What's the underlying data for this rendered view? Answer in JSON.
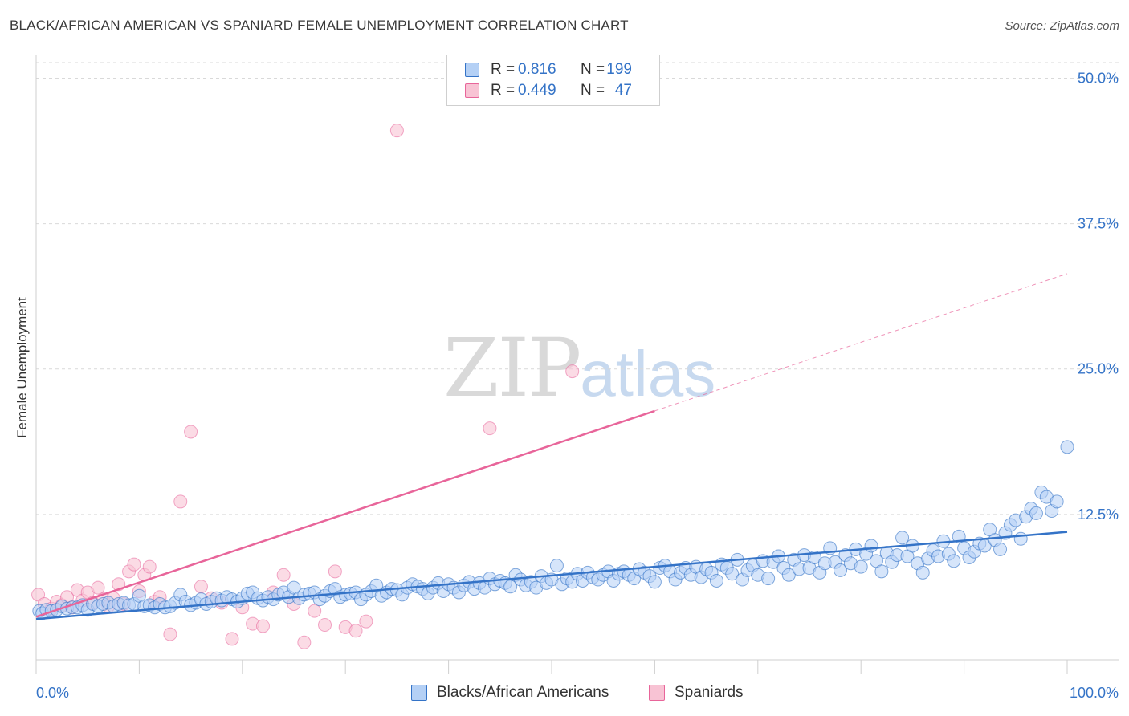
{
  "title": "BLACK/AFRICAN AMERICAN VS SPANIARD FEMALE UNEMPLOYMENT CORRELATION CHART",
  "source": "Source: ZipAtlas.com",
  "watermark": {
    "zip": "ZIP",
    "atlas": "atlas"
  },
  "legend": {
    "blue": {
      "r_label": "R =",
      "r_value": "0.816",
      "n_label": "N =",
      "n_value": "199"
    },
    "pink": {
      "r_label": "R =",
      "r_value": "0.449",
      "n_label": "N =",
      "n_value": "47"
    }
  },
  "bottom_legend": {
    "blue": "Blacks/African Americans",
    "pink": "Spaniards"
  },
  "colors": {
    "blue": "#3473c7",
    "blue_fill": "#b4d0f5",
    "pink": "#e8659a",
    "pink_fill": "#f8c3d4",
    "grid": "#d9d9d9"
  },
  "chart_data": {
    "type": "scatter",
    "title": "BLACK/AFRICAN AMERICAN VS SPANIARD FEMALE UNEMPLOYMENT CORRELATION CHART",
    "xlabel": "",
    "ylabel": "Female Unemployment",
    "xlim": [
      0,
      100
    ],
    "ylim": [
      0,
      53
    ],
    "x_tick_labels": [
      "0.0%",
      "100.0%"
    ],
    "y_ticks": [
      12.5,
      25.0,
      37.5,
      50.0
    ],
    "y_tick_labels": [
      "12.5%",
      "25.0%",
      "37.5%",
      "50.0%"
    ],
    "grid": true,
    "legend_position": "top-center",
    "series": [
      {
        "name": "Blacks/African Americans",
        "color": "#3473c7",
        "trend": {
          "x": [
            0,
            100
          ],
          "y": [
            3.5,
            11.0
          ]
        },
        "points": [
          [
            0.3,
            4.2
          ],
          [
            0.6,
            4.0
          ],
          [
            1.0,
            4.3
          ],
          [
            1.5,
            4.2
          ],
          [
            2.0,
            4.3
          ],
          [
            2.5,
            4.6
          ],
          [
            3.0,
            4.4
          ],
          [
            3.5,
            4.5
          ],
          [
            4.0,
            4.5
          ],
          [
            4.5,
            4.7
          ],
          [
            5.0,
            4.3
          ],
          [
            5.5,
            4.8
          ],
          [
            6.0,
            4.6
          ],
          [
            6.5,
            4.8
          ],
          [
            7.0,
            4.9
          ],
          [
            7.5,
            4.6
          ],
          [
            8.0,
            4.8
          ],
          [
            8.5,
            4.9
          ],
          [
            9.0,
            4.7
          ],
          [
            9.5,
            4.8
          ],
          [
            10.0,
            5.5
          ],
          [
            10.5,
            4.6
          ],
          [
            11.0,
            4.7
          ],
          [
            11.5,
            4.5
          ],
          [
            12.0,
            4.8
          ],
          [
            12.5,
            4.5
          ],
          [
            13.0,
            4.6
          ],
          [
            13.5,
            4.9
          ],
          [
            14.0,
            5.6
          ],
          [
            14.5,
            5.0
          ],
          [
            15.0,
            4.7
          ],
          [
            15.5,
            4.9
          ],
          [
            16.0,
            5.2
          ],
          [
            16.5,
            4.8
          ],
          [
            17.0,
            5.0
          ],
          [
            17.5,
            5.3
          ],
          [
            18.0,
            5.1
          ],
          [
            18.5,
            5.4
          ],
          [
            19.0,
            5.2
          ],
          [
            19.5,
            5.0
          ],
          [
            20.0,
            5.3
          ],
          [
            20.5,
            5.7
          ],
          [
            21.0,
            5.8
          ],
          [
            21.5,
            5.3
          ],
          [
            22.0,
            5.1
          ],
          [
            22.5,
            5.4
          ],
          [
            23.0,
            5.2
          ],
          [
            23.5,
            5.6
          ],
          [
            24.0,
            5.8
          ],
          [
            24.5,
            5.4
          ],
          [
            25.0,
            6.2
          ],
          [
            25.5,
            5.3
          ],
          [
            26.0,
            5.6
          ],
          [
            26.5,
            5.7
          ],
          [
            27.0,
            5.8
          ],
          [
            27.5,
            5.2
          ],
          [
            28.0,
            5.5
          ],
          [
            28.5,
            5.9
          ],
          [
            29.0,
            6.1
          ],
          [
            29.5,
            5.4
          ],
          [
            30.0,
            5.6
          ],
          [
            30.5,
            5.7
          ],
          [
            31.0,
            5.8
          ],
          [
            31.5,
            5.2
          ],
          [
            32.0,
            5.6
          ],
          [
            32.5,
            5.9
          ],
          [
            33.0,
            6.4
          ],
          [
            33.5,
            5.5
          ],
          [
            34.0,
            5.8
          ],
          [
            34.5,
            6.1
          ],
          [
            35.0,
            6.0
          ],
          [
            35.5,
            5.6
          ],
          [
            36.0,
            6.2
          ],
          [
            36.5,
            6.5
          ],
          [
            37.0,
            6.3
          ],
          [
            37.5,
            6.1
          ],
          [
            38.0,
            5.7
          ],
          [
            38.5,
            6.2
          ],
          [
            39.0,
            6.6
          ],
          [
            39.5,
            5.9
          ],
          [
            40.0,
            6.5
          ],
          [
            40.5,
            6.2
          ],
          [
            41.0,
            5.8
          ],
          [
            41.5,
            6.4
          ],
          [
            42.0,
            6.7
          ],
          [
            42.5,
            6.1
          ],
          [
            43.0,
            6.6
          ],
          [
            43.5,
            6.2
          ],
          [
            44.0,
            7.0
          ],
          [
            44.5,
            6.5
          ],
          [
            45.0,
            6.8
          ],
          [
            45.5,
            6.6
          ],
          [
            46.0,
            6.3
          ],
          [
            46.5,
            7.3
          ],
          [
            47.0,
            6.9
          ],
          [
            47.5,
            6.4
          ],
          [
            48.0,
            6.7
          ],
          [
            48.5,
            6.2
          ],
          [
            49.0,
            7.2
          ],
          [
            49.5,
            6.6
          ],
          [
            50.0,
            6.9
          ],
          [
            50.5,
            8.1
          ],
          [
            51.0,
            6.5
          ],
          [
            51.5,
            7.0
          ],
          [
            52.0,
            6.7
          ],
          [
            52.5,
            7.4
          ],
          [
            53.0,
            6.8
          ],
          [
            53.5,
            7.5
          ],
          [
            54.0,
            7.1
          ],
          [
            54.5,
            6.9
          ],
          [
            55.0,
            7.3
          ],
          [
            55.5,
            7.6
          ],
          [
            56.0,
            6.8
          ],
          [
            56.5,
            7.4
          ],
          [
            57.0,
            7.6
          ],
          [
            57.5,
            7.3
          ],
          [
            58.0,
            7.0
          ],
          [
            58.5,
            7.8
          ],
          [
            59.0,
            7.5
          ],
          [
            59.5,
            7.2
          ],
          [
            60.0,
            6.7
          ],
          [
            60.5,
            7.9
          ],
          [
            61.0,
            8.1
          ],
          [
            61.5,
            7.6
          ],
          [
            62.0,
            6.9
          ],
          [
            62.5,
            7.5
          ],
          [
            63.0,
            7.9
          ],
          [
            63.5,
            7.3
          ],
          [
            64.0,
            8.0
          ],
          [
            64.5,
            7.1
          ],
          [
            65.0,
            7.8
          ],
          [
            65.5,
            7.5
          ],
          [
            66.0,
            6.8
          ],
          [
            66.5,
            8.2
          ],
          [
            67.0,
            7.9
          ],
          [
            67.5,
            7.4
          ],
          [
            68.0,
            8.6
          ],
          [
            68.5,
            6.9
          ],
          [
            69.0,
            7.7
          ],
          [
            69.5,
            8.1
          ],
          [
            70.0,
            7.3
          ],
          [
            70.5,
            8.5
          ],
          [
            71.0,
            7.0
          ],
          [
            71.5,
            8.4
          ],
          [
            72.0,
            8.9
          ],
          [
            72.5,
            7.9
          ],
          [
            73.0,
            7.3
          ],
          [
            73.5,
            8.6
          ],
          [
            74.0,
            7.8
          ],
          [
            74.5,
            9.0
          ],
          [
            75.0,
            7.9
          ],
          [
            75.5,
            8.8
          ],
          [
            76.0,
            7.5
          ],
          [
            76.5,
            8.3
          ],
          [
            77.0,
            9.6
          ],
          [
            77.5,
            8.4
          ],
          [
            78.0,
            7.7
          ],
          [
            78.5,
            9.0
          ],
          [
            79.0,
            8.3
          ],
          [
            79.5,
            9.5
          ],
          [
            80.0,
            8.0
          ],
          [
            80.5,
            9.1
          ],
          [
            81.0,
            9.8
          ],
          [
            81.5,
            8.5
          ],
          [
            82.0,
            7.6
          ],
          [
            82.5,
            9.2
          ],
          [
            83.0,
            8.4
          ],
          [
            83.5,
            9.0
          ],
          [
            84.0,
            10.5
          ],
          [
            84.5,
            8.9
          ],
          [
            85.0,
            9.8
          ],
          [
            85.5,
            8.3
          ],
          [
            86.0,
            7.5
          ],
          [
            86.5,
            8.7
          ],
          [
            87.0,
            9.4
          ],
          [
            87.5,
            8.9
          ],
          [
            88.0,
            10.2
          ],
          [
            88.5,
            9.1
          ],
          [
            89.0,
            8.5
          ],
          [
            89.5,
            10.6
          ],
          [
            90.0,
            9.6
          ],
          [
            90.5,
            8.8
          ],
          [
            91.0,
            9.3
          ],
          [
            91.5,
            10.0
          ],
          [
            92.0,
            9.8
          ],
          [
            92.5,
            11.2
          ],
          [
            93.0,
            10.3
          ],
          [
            93.5,
            9.5
          ],
          [
            94.0,
            10.9
          ],
          [
            94.5,
            11.6
          ],
          [
            95.0,
            12.0
          ],
          [
            95.5,
            10.4
          ],
          [
            96.0,
            12.3
          ],
          [
            96.5,
            13.0
          ],
          [
            97.0,
            12.6
          ],
          [
            97.5,
            14.4
          ],
          [
            98.0,
            14.0
          ],
          [
            98.5,
            12.8
          ],
          [
            99.0,
            13.6
          ],
          [
            100.0,
            18.3
          ]
        ]
      },
      {
        "name": "Spaniards",
        "color": "#e8659a",
        "trend": {
          "x": [
            0,
            60
          ],
          "y": [
            3.7,
            21.4
          ]
        },
        "trend_extension": {
          "x": [
            60,
            100
          ],
          "y": [
            21.4,
            33.2
          ]
        },
        "points": [
          [
            0.2,
            5.6
          ],
          [
            0.8,
            4.8
          ],
          [
            1.5,
            4.4
          ],
          [
            2.0,
            5.0
          ],
          [
            2.5,
            4.7
          ],
          [
            3.0,
            5.4
          ],
          [
            3.5,
            4.5
          ],
          [
            4.0,
            6.0
          ],
          [
            4.5,
            5.1
          ],
          [
            5.0,
            5.8
          ],
          [
            5.5,
            4.9
          ],
          [
            6.0,
            6.2
          ],
          [
            6.5,
            5.2
          ],
          [
            7.0,
            4.6
          ],
          [
            7.5,
            5.3
          ],
          [
            8.0,
            6.5
          ],
          [
            8.5,
            4.8
          ],
          [
            9.0,
            7.6
          ],
          [
            9.5,
            8.2
          ],
          [
            10.0,
            5.9
          ],
          [
            10.5,
            7.3
          ],
          [
            11.0,
            8.0
          ],
          [
            11.5,
            5.0
          ],
          [
            12.0,
            5.4
          ],
          [
            13.0,
            2.2
          ],
          [
            14.0,
            13.6
          ],
          [
            15.0,
            19.6
          ],
          [
            16.0,
            6.3
          ],
          [
            17.0,
            5.3
          ],
          [
            18.0,
            4.9
          ],
          [
            19.0,
            1.8
          ],
          [
            20.0,
            4.5
          ],
          [
            21.0,
            3.1
          ],
          [
            22.0,
            2.9
          ],
          [
            23.0,
            5.8
          ],
          [
            24.0,
            7.3
          ],
          [
            25.0,
            4.8
          ],
          [
            26.0,
            1.5
          ],
          [
            27.0,
            4.2
          ],
          [
            28.0,
            3.0
          ],
          [
            29.0,
            7.6
          ],
          [
            30.0,
            2.8
          ],
          [
            31.0,
            2.5
          ],
          [
            32.0,
            3.3
          ],
          [
            35.0,
            45.5
          ],
          [
            44.0,
            19.9
          ],
          [
            52.0,
            24.8
          ]
        ]
      }
    ]
  }
}
